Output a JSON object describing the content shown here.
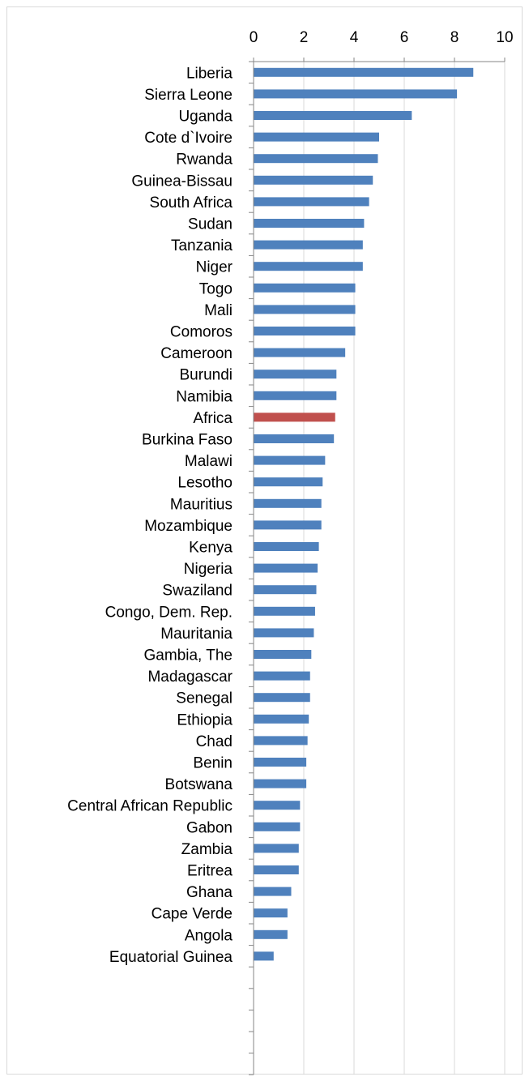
{
  "chart_data": {
    "type": "bar",
    "orientation": "horizontal",
    "title": "",
    "xlabel": "",
    "ylabel": "",
    "xlim": [
      0,
      10
    ],
    "x_ticks": [
      "0",
      "2",
      "4",
      "6",
      "8",
      "10"
    ],
    "x_axis_position": "top",
    "grid": true,
    "legend": "none",
    "colors": {
      "default": "#4f81bd",
      "highlight": "#c0504d",
      "grid": "#d9d9d9",
      "axis": "#868686"
    },
    "highlight_category": "Africa",
    "empty_trailing_slots": 5,
    "categories": [
      "Liberia",
      "Sierra Leone",
      "Uganda",
      "Cote d`Ivoire",
      "Rwanda",
      "Guinea-Bissau",
      "South Africa",
      "Sudan",
      "Tanzania",
      "Niger",
      "Togo",
      "Mali",
      "Comoros",
      "Cameroon",
      "Burundi",
      "Namibia",
      "Africa",
      "Burkina Faso",
      "Malawi",
      "Lesotho",
      "Mauritius",
      "Mozambique",
      "Kenya",
      "Nigeria",
      "Swaziland",
      "Congo, Dem. Rep.",
      "Mauritania",
      "Gambia, The",
      "Madagascar",
      "Senegal",
      "Ethiopia",
      "Chad",
      "Benin",
      "Botswana",
      "Central African Republic",
      "Gabon",
      "Zambia",
      "Eritrea",
      "Ghana",
      "Cape Verde",
      "Angola",
      "Equatorial Guinea"
    ],
    "values": [
      8.75,
      8.1,
      6.3,
      5.0,
      4.95,
      4.75,
      4.6,
      4.4,
      4.35,
      4.35,
      4.05,
      4.05,
      4.05,
      3.65,
      3.3,
      3.3,
      3.25,
      3.2,
      2.85,
      2.75,
      2.7,
      2.7,
      2.6,
      2.55,
      2.5,
      2.45,
      2.4,
      2.3,
      2.25,
      2.25,
      2.2,
      2.15,
      2.1,
      2.1,
      1.85,
      1.85,
      1.8,
      1.8,
      1.5,
      1.35,
      1.35,
      0.8
    ]
  }
}
